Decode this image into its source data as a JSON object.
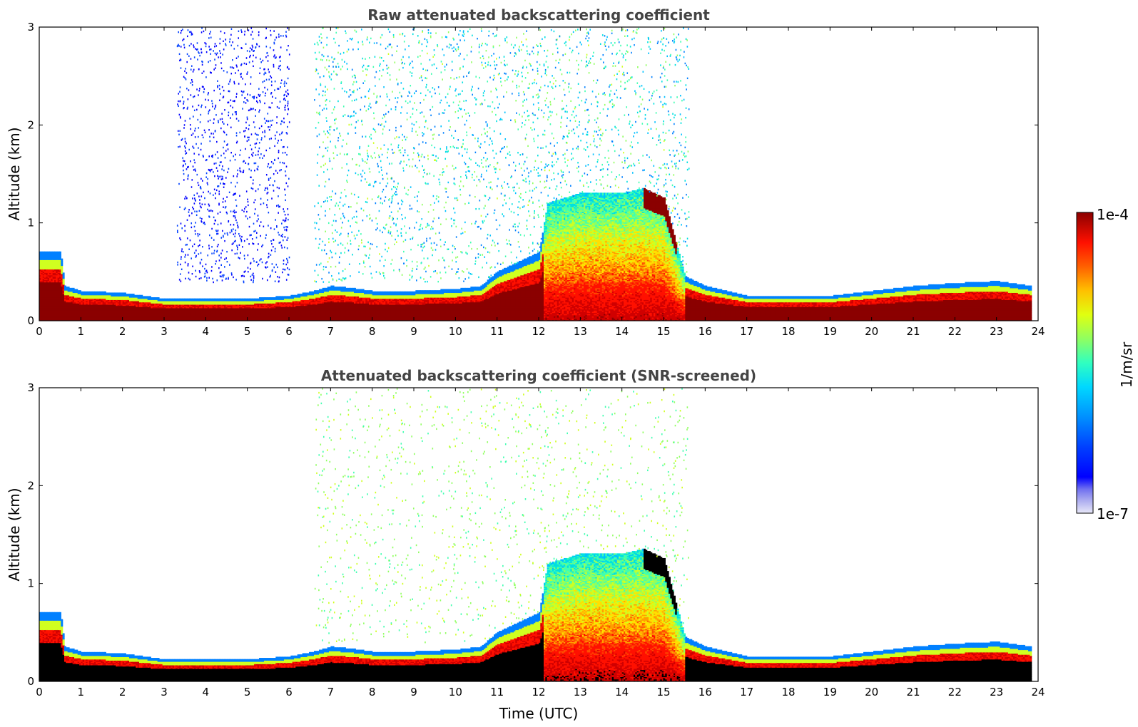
{
  "chart_data": [
    {
      "type": "heatmap",
      "title": "Raw attenuated backscattering coefficient",
      "ylabel": "Altitude (km)",
      "xlabel": "",
      "xlim": [
        0,
        24
      ],
      "ylim": [
        0,
        3
      ],
      "xticks": [
        "0",
        "1",
        "2",
        "3",
        "4",
        "5",
        "6",
        "7",
        "8",
        "9",
        "10",
        "11",
        "12",
        "13",
        "14",
        "15",
        "16",
        "17",
        "18",
        "19",
        "20",
        "21",
        "22",
        "23",
        "24"
      ],
      "yticks": [
        "0",
        "1",
        "2",
        "3"
      ],
      "screened": false,
      "layer_top_km": {
        "time": [
          0,
          0.5,
          0.6,
          1,
          2,
          3,
          4,
          5,
          6,
          6.6,
          7,
          7.5,
          8,
          9,
          10,
          10.6,
          11,
          11.5,
          12,
          12.2,
          13,
          14,
          14.5,
          15,
          15.5,
          16,
          17,
          18,
          19,
          20,
          21,
          22,
          23,
          23.8
        ],
        "top": [
          0.7,
          0.7,
          0.35,
          0.3,
          0.28,
          0.22,
          0.22,
          0.22,
          0.25,
          0.3,
          0.35,
          0.33,
          0.3,
          0.3,
          0.32,
          0.35,
          0.5,
          0.6,
          0.7,
          1.2,
          1.3,
          1.3,
          1.35,
          1.25,
          0.45,
          0.35,
          0.25,
          0.25,
          0.25,
          0.3,
          0.35,
          0.38,
          0.4,
          0.35
        ]
      }
    },
    {
      "type": "heatmap",
      "title": "Attenuated backscattering coefficient (SNR-screened)",
      "ylabel": "Altitude (km)",
      "xlabel": "Time (UTC)",
      "xlim": [
        0,
        24
      ],
      "ylim": [
        0,
        3
      ],
      "xticks": [
        "0",
        "1",
        "2",
        "3",
        "4",
        "5",
        "6",
        "7",
        "8",
        "9",
        "10",
        "11",
        "12",
        "13",
        "14",
        "15",
        "16",
        "17",
        "18",
        "19",
        "20",
        "21",
        "22",
        "23",
        "24"
      ],
      "yticks": [
        "0",
        "1",
        "2",
        "3"
      ],
      "screened": true
    }
  ],
  "colorbar": {
    "label": "1/m/sr",
    "max_label": "1e-4",
    "min_label": "1e-7",
    "colors": [
      "#e8e8f8",
      "#b0b0f0",
      "#7070f0",
      "#0000ff",
      "#0040ff",
      "#0080ff",
      "#00c0ff",
      "#00e0e0",
      "#40ffb0",
      "#90ff60",
      "#d0ff20",
      "#ffe000",
      "#ffa000",
      "#ff5000",
      "#ff1000",
      "#d00000",
      "#8b0000"
    ]
  }
}
